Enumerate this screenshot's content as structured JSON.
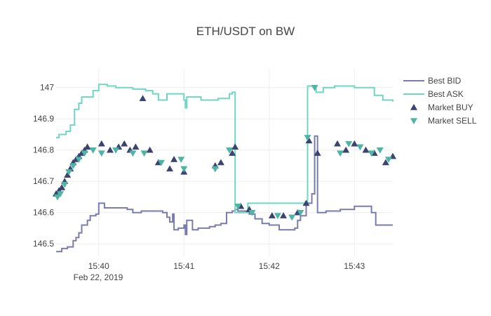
{
  "chart_data": {
    "type": "line",
    "title": "ETH/USDT on BW",
    "xlabel": "",
    "ylabel": "",
    "grid": true,
    "legend_position": "right",
    "date_label": "Feb 22, 2019",
    "x_ticks": [
      "15:40",
      "15:41",
      "15:42",
      "15:43"
    ],
    "y_ticks": [
      146.5,
      146.6,
      146.7,
      146.8,
      146.9,
      147
    ],
    "xlim": [
      "15:39:30",
      "15:43:27"
    ],
    "ylim": [
      146.46,
      147.06
    ],
    "colors": {
      "bid": "#7a7cb0",
      "ask": "#6fd6c2",
      "buy": "#3b4370",
      "sell": "#4cb5a5",
      "grid": "#eeeeee",
      "text": "#444444"
    },
    "series": [
      {
        "name": "Best BID",
        "marker": "line",
        "points": [
          [
            "15:39:30",
            146.475
          ],
          [
            "15:39:34",
            146.485
          ],
          [
            "15:39:38",
            146.49
          ],
          [
            "15:39:42",
            146.51
          ],
          [
            "15:39:44",
            146.52
          ],
          [
            "15:39:46",
            146.535
          ],
          [
            "15:39:48",
            146.56
          ],
          [
            "15:39:52",
            146.575
          ],
          [
            "15:39:54",
            146.59
          ],
          [
            "15:39:58",
            146.595
          ],
          [
            "15:40:00",
            146.63
          ],
          [
            "15:40:04",
            146.615
          ],
          [
            "15:40:10",
            146.615
          ],
          [
            "15:40:14",
            146.615
          ],
          [
            "15:40:20",
            146.61
          ],
          [
            "15:40:24",
            146.6
          ],
          [
            "15:40:30",
            146.605
          ],
          [
            "15:40:40",
            146.605
          ],
          [
            "15:40:45",
            146.6
          ],
          [
            "15:40:48",
            146.585
          ],
          [
            "15:40:50",
            146.57
          ],
          [
            "15:40:52",
            146.595
          ],
          [
            "15:40:53",
            146.545
          ],
          [
            "15:40:56",
            146.55
          ],
          [
            "15:41:00",
            146.56
          ],
          [
            "15:41:01",
            146.53
          ],
          [
            "15:41:02",
            146.575
          ],
          [
            "15:41:06",
            146.545
          ],
          [
            "15:41:10",
            146.55
          ],
          [
            "15:41:18",
            146.555
          ],
          [
            "15:41:22",
            146.56
          ],
          [
            "15:41:26",
            146.565
          ],
          [
            "15:41:30",
            146.6
          ],
          [
            "15:41:34",
            146.605
          ],
          [
            "15:41:36",
            146.61
          ],
          [
            "15:41:38",
            146.605
          ],
          [
            "15:41:42",
            146.605
          ],
          [
            "15:41:46",
            146.595
          ],
          [
            "15:41:50",
            146.58
          ],
          [
            "15:41:55",
            146.565
          ],
          [
            "15:42:00",
            146.56
          ],
          [
            "15:42:07",
            146.545
          ],
          [
            "15:42:18",
            146.55
          ],
          [
            "15:42:20",
            146.575
          ],
          [
            "15:42:22",
            146.59
          ],
          [
            "15:42:26",
            146.63
          ],
          [
            "15:42:30",
            146.66
          ],
          [
            "15:42:32",
            146.845
          ],
          [
            "15:42:34",
            146.6
          ],
          [
            "15:42:40",
            146.605
          ],
          [
            "15:42:50",
            146.61
          ],
          [
            "15:43:00",
            146.62
          ],
          [
            "15:43:10",
            146.62
          ],
          [
            "15:43:12",
            146.6
          ],
          [
            "15:43:15",
            146.56
          ],
          [
            "15:43:27",
            146.56
          ]
        ]
      },
      {
        "name": "Best ASK",
        "marker": "line",
        "points": [
          [
            "15:39:30",
            146.84
          ],
          [
            "15:39:32",
            146.85
          ],
          [
            "15:39:37",
            146.86
          ],
          [
            "15:39:40",
            146.88
          ],
          [
            "15:39:43",
            146.93
          ],
          [
            "15:39:46",
            146.95
          ],
          [
            "15:39:48",
            146.97
          ],
          [
            "15:39:52",
            146.97
          ],
          [
            "15:39:56",
            146.99
          ],
          [
            "15:40:00",
            147.01
          ],
          [
            "15:40:06",
            147.005
          ],
          [
            "15:40:12",
            147.0
          ],
          [
            "15:40:24",
            146.995
          ],
          [
            "15:40:33",
            146.99
          ],
          [
            "15:40:38",
            146.98
          ],
          [
            "15:40:42",
            146.96
          ],
          [
            "15:40:48",
            146.98
          ],
          [
            "15:41:00",
            146.96
          ],
          [
            "15:41:01",
            146.935
          ],
          [
            "15:41:02",
            146.97
          ],
          [
            "15:41:06",
            146.97
          ],
          [
            "15:41:12",
            146.96
          ],
          [
            "15:41:24",
            146.965
          ],
          [
            "15:41:32",
            146.98
          ],
          [
            "15:41:34",
            146.985
          ],
          [
            "15:41:36",
            146.6
          ],
          [
            "15:41:45",
            146.63
          ],
          [
            "15:42:00",
            146.63
          ],
          [
            "15:42:26",
            146.63
          ],
          [
            "15:42:27",
            147.005
          ],
          [
            "15:42:33",
            146.985
          ],
          [
            "15:42:38",
            147.0
          ],
          [
            "15:42:46",
            147.005
          ],
          [
            "15:43:00",
            147.0
          ],
          [
            "15:43:14",
            146.975
          ],
          [
            "15:43:20",
            146.96
          ],
          [
            "15:43:27",
            146.955
          ]
        ]
      },
      {
        "name": "Market BUY",
        "marker": "triangle-up",
        "points": [
          [
            "15:39:30",
            146.66
          ],
          [
            "15:39:32",
            146.67
          ],
          [
            "15:39:34",
            146.68
          ],
          [
            "15:39:36",
            146.7
          ],
          [
            "15:39:38",
            146.72
          ],
          [
            "15:39:40",
            146.74
          ],
          [
            "15:39:42",
            146.76
          ],
          [
            "15:39:44",
            146.77
          ],
          [
            "15:39:46",
            146.78
          ],
          [
            "15:39:48",
            146.79
          ],
          [
            "15:39:50",
            146.8
          ],
          [
            "15:39:52",
            146.81
          ],
          [
            "15:40:02",
            146.82
          ],
          [
            "15:40:08",
            146.8
          ],
          [
            "15:40:14",
            146.81
          ],
          [
            "15:40:18",
            146.82
          ],
          [
            "15:40:22",
            146.8
          ],
          [
            "15:40:26",
            146.81
          ],
          [
            "15:40:31",
            146.965
          ],
          [
            "15:40:36",
            146.8
          ],
          [
            "15:40:42",
            146.76
          ],
          [
            "15:40:50",
            146.74
          ],
          [
            "15:40:53",
            146.77
          ],
          [
            "15:41:00",
            146.73
          ],
          [
            "15:41:22",
            146.75
          ],
          [
            "15:41:26",
            146.76
          ],
          [
            "15:41:34",
            146.79
          ],
          [
            "15:41:36",
            146.81
          ],
          [
            "15:41:40",
            146.62
          ],
          [
            "15:41:46",
            146.61
          ],
          [
            "15:42:02",
            146.59
          ],
          [
            "15:42:10",
            146.59
          ],
          [
            "15:42:20",
            146.6
          ],
          [
            "15:42:26",
            146.63
          ],
          [
            "15:42:28",
            146.83
          ],
          [
            "15:42:34",
            146.79
          ],
          [
            "15:42:48",
            146.82
          ],
          [
            "15:42:54",
            146.8
          ],
          [
            "15:43:00",
            146.82
          ],
          [
            "15:43:08",
            146.8
          ],
          [
            "15:43:14",
            146.79
          ],
          [
            "15:43:22",
            146.76
          ],
          [
            "15:43:27",
            146.78
          ]
        ]
      },
      {
        "name": "Market SELL",
        "marker": "triangle-down",
        "points": [
          [
            "15:39:31",
            146.65
          ],
          [
            "15:39:33",
            146.66
          ],
          [
            "15:39:36",
            146.69
          ],
          [
            "15:39:39",
            146.73
          ],
          [
            "15:39:42",
            146.75
          ],
          [
            "15:39:46",
            146.77
          ],
          [
            "15:39:50",
            146.79
          ],
          [
            "15:39:56",
            146.8
          ],
          [
            "15:40:02",
            146.79
          ],
          [
            "15:40:12",
            146.8
          ],
          [
            "15:40:24",
            146.79
          ],
          [
            "15:40:32",
            146.79
          ],
          [
            "15:40:44",
            146.76
          ],
          [
            "15:40:58",
            146.77
          ],
          [
            "15:41:00",
            146.74
          ],
          [
            "15:41:22",
            146.74
          ],
          [
            "15:41:32",
            146.8
          ],
          [
            "15:41:38",
            146.62
          ],
          [
            "15:41:48",
            146.6
          ],
          [
            "15:42:06",
            146.59
          ],
          [
            "15:42:16",
            146.585
          ],
          [
            "15:42:22",
            146.6
          ],
          [
            "15:42:27",
            146.84
          ],
          [
            "15:42:32",
            147.0
          ],
          [
            "15:42:50",
            146.79
          ],
          [
            "15:42:56",
            146.82
          ],
          [
            "15:43:04",
            146.81
          ],
          [
            "15:43:12",
            146.79
          ],
          [
            "15:43:18",
            146.8
          ],
          [
            "15:43:24",
            146.77
          ]
        ]
      }
    ]
  }
}
